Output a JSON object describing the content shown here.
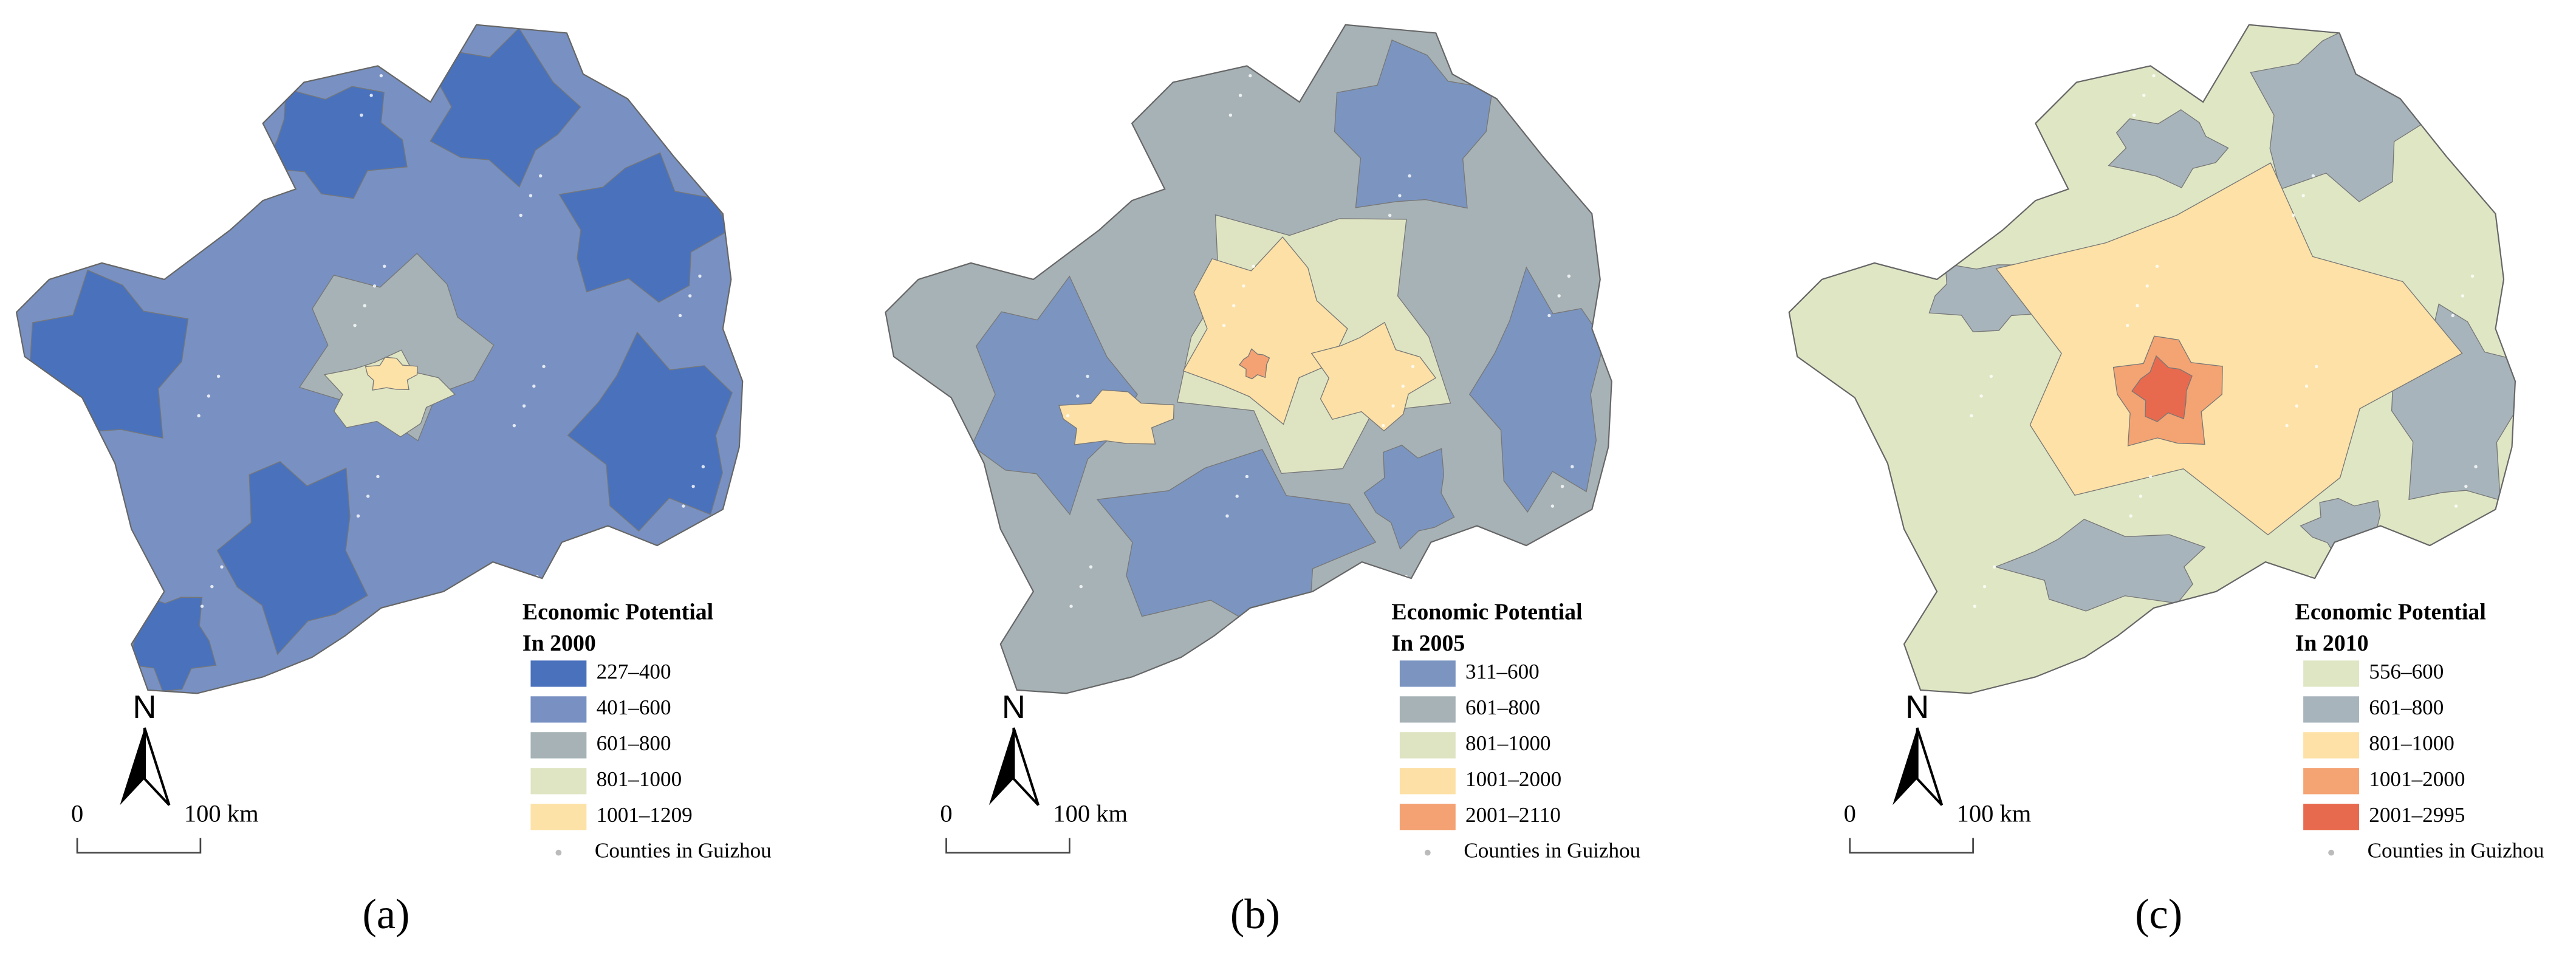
{
  "panels": [
    {
      "label": "(a)",
      "legend": {
        "title_lines": [
          "Economic Potential",
          "In 2000"
        ],
        "items": [
          {
            "label": "227–400",
            "color": "#4a72bc"
          },
          {
            "label": "401–600",
            "color": "#7891c2"
          },
          {
            "label": "601–800",
            "color": "#a6b2b6"
          },
          {
            "label": "801–1000",
            "color": "#dfe5c2"
          },
          {
            "label": "1001–1209",
            "color": "#fde2a8"
          }
        ],
        "points_label": "Counties in Guizhou"
      },
      "north": "N",
      "scale": {
        "zero": "0",
        "distance": "100 km"
      }
    },
    {
      "label": "(b)",
      "legend": {
        "title_lines": [
          "Economic Potential",
          "In 2005"
        ],
        "items": [
          {
            "label": "311–600",
            "color": "#7b95c0"
          },
          {
            "label": "601–800",
            "color": "#a7b2b6"
          },
          {
            "label": "801–1000",
            "color": "#dee4c2"
          },
          {
            "label": "1001–2000",
            "color": "#fde0a5"
          },
          {
            "label": "2001–2110",
            "color": "#f4a273"
          }
        ],
        "points_label": "Counties in Guizhou"
      },
      "north": "N",
      "scale": {
        "zero": "0",
        "distance": "100 km"
      }
    },
    {
      "label": "(c)",
      "legend": {
        "title_lines": [
          "Economic Potential",
          "In 2010"
        ],
        "items": [
          {
            "label": "556–600",
            "color": "#dfe6c4"
          },
          {
            "label": "601–800",
            "color": "#a7b4bb"
          },
          {
            "label": "801–1000",
            "color": "#fde1a6"
          },
          {
            "label": "1001–2000",
            "color": "#f4a373"
          },
          {
            "label": "2001–2995",
            "color": "#e86a4e"
          }
        ],
        "points_label": "Counties in Guizhou"
      },
      "north": "N",
      "scale": {
        "zero": "0",
        "distance": "100 km"
      }
    }
  ]
}
